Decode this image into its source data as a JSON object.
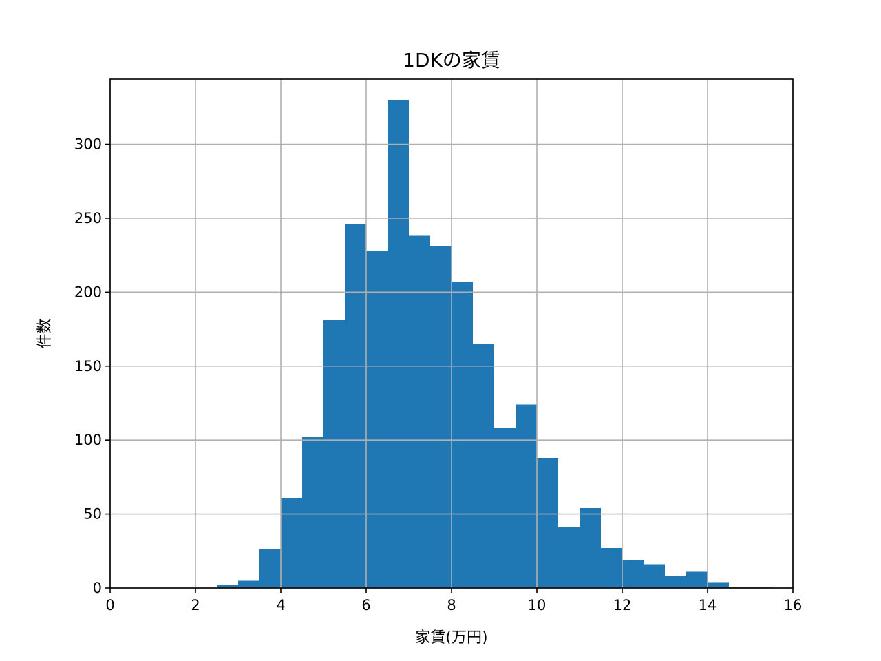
{
  "chart_data": {
    "type": "bar",
    "title": "1DKの家賃",
    "xlabel": "家賃(万円)",
    "ylabel": "件数",
    "xlim": [
      0,
      16
    ],
    "ylim": [
      0,
      344
    ],
    "xticks": [
      0,
      2,
      4,
      6,
      8,
      10,
      12,
      14,
      16
    ],
    "yticks": [
      0,
      50,
      100,
      150,
      200,
      250,
      300
    ],
    "grid": true,
    "bar_color": "#1f77b4",
    "bins": [
      {
        "x0": 2.5,
        "x1": 3.0,
        "value": 2
      },
      {
        "x0": 3.0,
        "x1": 3.5,
        "value": 5
      },
      {
        "x0": 3.5,
        "x1": 4.0,
        "value": 26
      },
      {
        "x0": 4.0,
        "x1": 4.5,
        "value": 61
      },
      {
        "x0": 4.5,
        "x1": 5.0,
        "value": 102
      },
      {
        "x0": 5.0,
        "x1": 5.5,
        "value": 181
      },
      {
        "x0": 5.5,
        "x1": 6.0,
        "value": 246
      },
      {
        "x0": 6.0,
        "x1": 6.5,
        "value": 228
      },
      {
        "x0": 6.5,
        "x1": 7.0,
        "value": 330
      },
      {
        "x0": 7.0,
        "x1": 7.5,
        "value": 238
      },
      {
        "x0": 7.5,
        "x1": 8.0,
        "value": 231
      },
      {
        "x0": 8.0,
        "x1": 8.5,
        "value": 207
      },
      {
        "x0": 8.5,
        "x1": 9.0,
        "value": 165
      },
      {
        "x0": 9.0,
        "x1": 9.5,
        "value": 108
      },
      {
        "x0": 9.5,
        "x1": 10.0,
        "value": 124
      },
      {
        "x0": 10.0,
        "x1": 10.5,
        "value": 88
      },
      {
        "x0": 10.5,
        "x1": 11.0,
        "value": 41
      },
      {
        "x0": 11.0,
        "x1": 11.5,
        "value": 54
      },
      {
        "x0": 11.5,
        "x1": 12.0,
        "value": 27
      },
      {
        "x0": 12.0,
        "x1": 12.5,
        "value": 19
      },
      {
        "x0": 12.5,
        "x1": 13.0,
        "value": 16
      },
      {
        "x0": 13.0,
        "x1": 13.5,
        "value": 8
      },
      {
        "x0": 13.5,
        "x1": 14.0,
        "value": 11
      },
      {
        "x0": 14.0,
        "x1": 14.5,
        "value": 4
      },
      {
        "x0": 14.5,
        "x1": 15.0,
        "value": 1
      },
      {
        "x0": 15.0,
        "x1": 15.5,
        "value": 1
      }
    ]
  }
}
